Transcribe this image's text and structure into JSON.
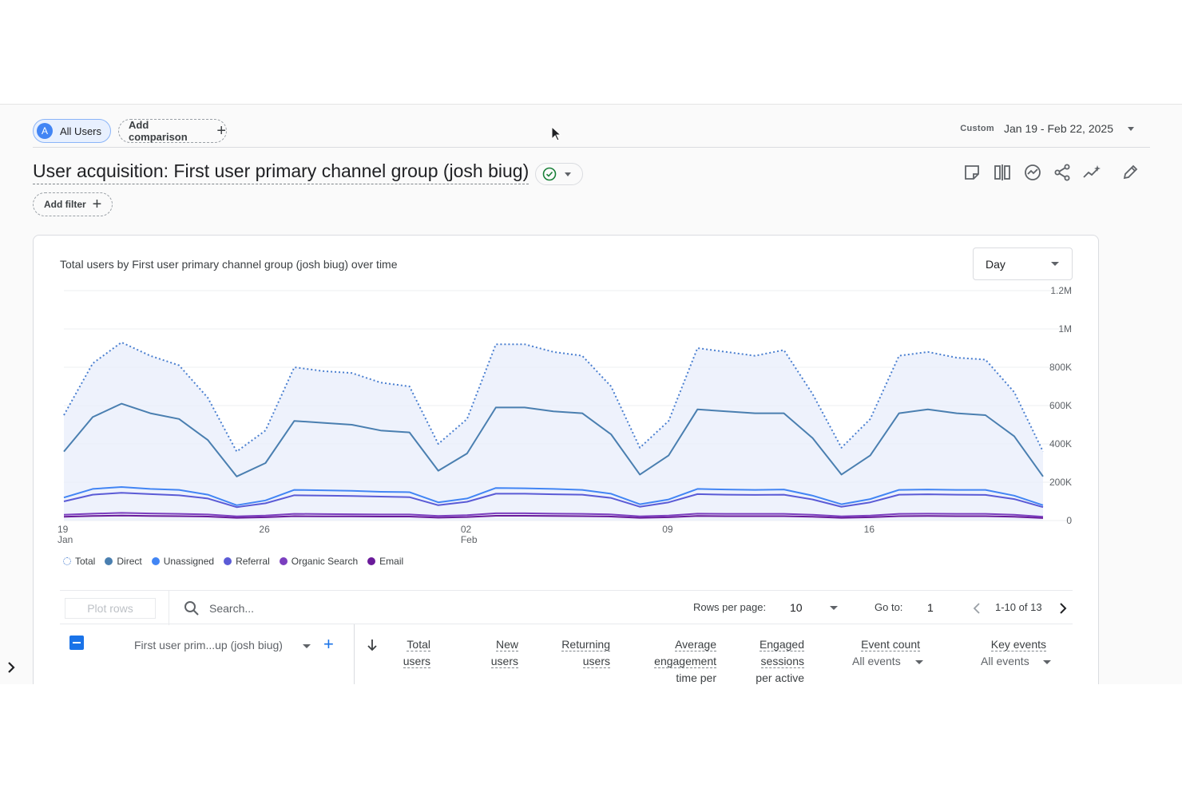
{
  "comparison": {
    "segment_badge": "A",
    "segment_label": "All Users",
    "add_comparison_label": "Add comparison"
  },
  "date_range": {
    "mode": "Custom",
    "value": "Jan 19 - Feb 22, 2025"
  },
  "page_title": "User acquisition: First user primary channel group (josh biug)",
  "add_filter_label": "Add filter",
  "chart_card": {
    "title": "Total users by First user primary channel group (josh biug) over time",
    "granularity": "Day"
  },
  "chart_data": {
    "type": "line",
    "ylim": [
      0,
      1200000
    ],
    "y_ticks": [
      "0",
      "200K",
      "400K",
      "600K",
      "800K",
      "1M",
      "1.2M"
    ],
    "x_ticks": [
      {
        "day": "19",
        "month": "Jan",
        "index": 0
      },
      {
        "day": "26",
        "month": "",
        "index": 7
      },
      {
        "day": "02",
        "month": "Feb",
        "index": 14
      },
      {
        "day": "09",
        "month": "",
        "index": 21
      },
      {
        "day": "16",
        "month": "",
        "index": 28
      }
    ],
    "x": [
      "Jan 19",
      "Jan 20",
      "Jan 21",
      "Jan 22",
      "Jan 23",
      "Jan 24",
      "Jan 25",
      "Jan 26",
      "Jan 27",
      "Jan 28",
      "Jan 29",
      "Jan 30",
      "Jan 31",
      "Feb 01",
      "Feb 02",
      "Feb 03",
      "Feb 04",
      "Feb 05",
      "Feb 06",
      "Feb 07",
      "Feb 08",
      "Feb 09",
      "Feb 10",
      "Feb 11",
      "Feb 12",
      "Feb 13",
      "Feb 14",
      "Feb 15",
      "Feb 16",
      "Feb 17",
      "Feb 18",
      "Feb 19",
      "Feb 20",
      "Feb 21",
      "Feb 22"
    ],
    "series": [
      {
        "name": "Total",
        "color": "#4a7fd0",
        "dashed": true,
        "values": [
          550000,
          820000,
          930000,
          860000,
          810000,
          640000,
          360000,
          470000,
          800000,
          780000,
          770000,
          720000,
          700000,
          400000,
          530000,
          920000,
          920000,
          880000,
          860000,
          700000,
          380000,
          520000,
          900000,
          880000,
          860000,
          890000,
          660000,
          380000,
          530000,
          860000,
          880000,
          850000,
          840000,
          670000,
          360000
        ]
      },
      {
        "name": "Direct",
        "color": "#4a7fb0",
        "values": [
          360000,
          540000,
          610000,
          560000,
          530000,
          420000,
          230000,
          300000,
          520000,
          510000,
          500000,
          470000,
          460000,
          260000,
          350000,
          590000,
          590000,
          570000,
          560000,
          450000,
          240000,
          340000,
          580000,
          570000,
          560000,
          560000,
          430000,
          240000,
          340000,
          560000,
          580000,
          560000,
          550000,
          440000,
          230000
        ]
      },
      {
        "name": "Unassigned",
        "color": "#4285f4",
        "values": [
          120000,
          165000,
          175000,
          165000,
          160000,
          135000,
          80000,
          105000,
          160000,
          158000,
          155000,
          150000,
          148000,
          95000,
          115000,
          170000,
          168000,
          165000,
          160000,
          140000,
          85000,
          110000,
          165000,
          162000,
          160000,
          162000,
          130000,
          85000,
          112000,
          160000,
          162000,
          160000,
          160000,
          130000,
          80000
        ]
      },
      {
        "name": "Referral",
        "color": "#5b5bd6",
        "values": [
          100000,
          135000,
          145000,
          138000,
          132000,
          115000,
          70000,
          90000,
          132000,
          130000,
          128000,
          125000,
          122000,
          80000,
          98000,
          140000,
          140000,
          137000,
          135000,
          118000,
          72000,
          95000,
          138000,
          135000,
          134000,
          135000,
          110000,
          72000,
          95000,
          135000,
          137000,
          135000,
          134000,
          112000,
          70000
        ]
      },
      {
        "name": "Organic Search",
        "color": "#7b3fbf",
        "values": [
          30000,
          36000,
          40000,
          37000,
          35000,
          32000,
          22000,
          26000,
          35000,
          34000,
          33000,
          32000,
          32000,
          24000,
          28000,
          38000,
          38000,
          36000,
          35000,
          32000,
          22000,
          26000,
          36000,
          35000,
          35000,
          35000,
          30000,
          22000,
          26000,
          35000,
          36000,
          35000,
          35000,
          30000,
          20000
        ]
      },
      {
        "name": "Email",
        "color": "#6a1b9a",
        "values": [
          20000,
          24000,
          26000,
          24000,
          23000,
          21000,
          14000,
          17000,
          23000,
          22000,
          22000,
          21000,
          21000,
          15000,
          18000,
          25000,
          25000,
          24000,
          23000,
          21000,
          14000,
          17000,
          24000,
          23000,
          23000,
          23000,
          20000,
          14000,
          17000,
          23000,
          24000,
          23000,
          23000,
          20000,
          13000
        ]
      }
    ]
  },
  "table": {
    "plot_rows_label": "Plot rows",
    "search_placeholder": "Search...",
    "rows_per_page_label": "Rows per page:",
    "rows_per_page_value": "10",
    "goto_label": "Go to:",
    "goto_value": "1",
    "pagination": "1-10 of 13",
    "dimension_label": "First user prim...up (josh biug)",
    "columns": {
      "total_users": [
        "Total",
        "users"
      ],
      "new_users": [
        "New",
        "users"
      ],
      "returning_users": [
        "Returning",
        "users"
      ],
      "avg_engagement": [
        "Average",
        "engagement",
        "time per"
      ],
      "engaged_sessions": [
        "Engaged",
        "sessions",
        "per active"
      ],
      "event_count": "Event count",
      "event_count_filter": "All events",
      "key_events": "Key events",
      "key_events_filter": "All events"
    }
  }
}
